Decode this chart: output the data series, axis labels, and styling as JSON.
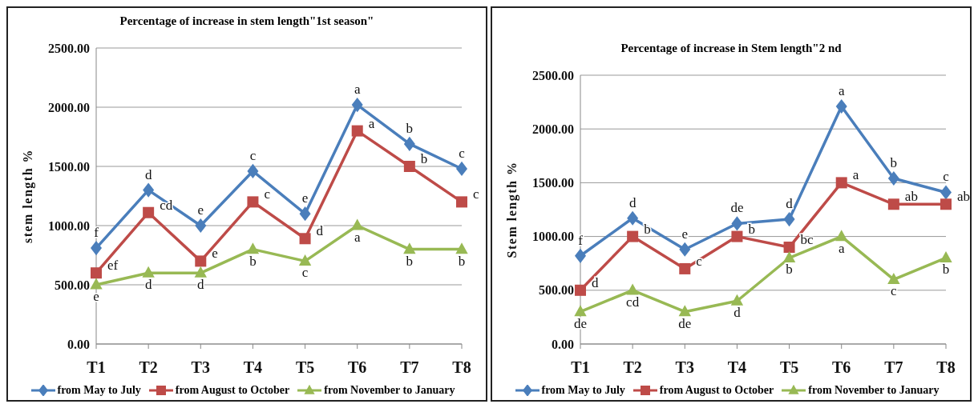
{
  "chart_data": [
    {
      "type": "line",
      "title": "Percentage of increase in stem length\"1st season\"",
      "ylabel": "stem length %",
      "categories": [
        "T1",
        "T2",
        "T3",
        "T4",
        "T5",
        "T6",
        "T7",
        "T8"
      ],
      "ylim": [
        0,
        2500
      ],
      "yticks": [
        {
          "value": 0,
          "label": "0.00"
        },
        {
          "value": 500,
          "label": "500.00"
        },
        {
          "value": 1000,
          "label": "1000.00"
        },
        {
          "value": 1500,
          "label": "1500.00"
        },
        {
          "value": 2000,
          "label": "2000.00"
        },
        {
          "value": 2500,
          "label": "2500.00"
        }
      ],
      "grid": "y",
      "legend": "bottom",
      "line_style": "solid",
      "series": [
        {
          "name": "from May to July",
          "color": "#4a7ebb",
          "marker": "diamond",
          "values": [
            810,
            1300,
            1000,
            1460,
            1100,
            2020,
            1690,
            1480
          ],
          "value_labels": [
            "f",
            "d",
            "e",
            "c",
            "e",
            "a",
            "b",
            "c"
          ]
        },
        {
          "name": "from August to October",
          "color": "#be4b48",
          "marker": "square",
          "values": [
            600,
            1110,
            700,
            1200,
            890,
            1800,
            1500,
            1200
          ],
          "value_labels": [
            "ef",
            "cd",
            "e",
            "c",
            "d",
            "a",
            "b",
            "c"
          ]
        },
        {
          "name": "from November to January",
          "color": "#98b954",
          "marker": "triangle",
          "values": [
            500,
            600,
            600,
            800,
            700,
            1000,
            800,
            800
          ],
          "value_labels": [
            "e",
            "d",
            "d",
            "b",
            "c",
            "a",
            "b",
            "b"
          ]
        }
      ]
    },
    {
      "type": "line",
      "title": "Percentage of increase in Stem length\"2 nd",
      "ylabel": "Stem length %",
      "categories": [
        "T1",
        "T2",
        "T3",
        "T4",
        "T5",
        "T6",
        "T7",
        "T8"
      ],
      "ylim": [
        0,
        2500
      ],
      "yticks": [
        {
          "value": 0,
          "label": "0.00"
        },
        {
          "value": 500,
          "label": "500.00"
        },
        {
          "value": 1000,
          "label": "1000.00"
        },
        {
          "value": 1500,
          "label": "1500.00"
        },
        {
          "value": 2000,
          "label": "2000.00"
        },
        {
          "value": 2500,
          "label": "2500.00"
        }
      ],
      "grid": "y",
      "legend": "bottom",
      "line_style": "solid",
      "series": [
        {
          "name": "from May to July",
          "color": "#4a7ebb",
          "marker": "diamond",
          "values": [
            820,
            1170,
            880,
            1120,
            1160,
            2210,
            1540,
            1410
          ],
          "value_labels": [
            "f",
            "d",
            "e",
            "de",
            "d",
            "a",
            "b",
            "c"
          ]
        },
        {
          "name": "from August to October",
          "color": "#be4b48",
          "marker": "square",
          "values": [
            500,
            1000,
            700,
            1000,
            900,
            1500,
            1300,
            1300
          ],
          "value_labels": [
            "d",
            "b",
            "c",
            "b",
            "bc",
            "a",
            "ab",
            "ab"
          ]
        },
        {
          "name": "from November to January",
          "color": "#98b954",
          "marker": "triangle",
          "values": [
            300,
            500,
            300,
            400,
            800,
            1000,
            600,
            800
          ],
          "value_labels": [
            "de",
            "cd",
            "de",
            "d",
            "b",
            "a",
            "c",
            "b"
          ]
        }
      ]
    }
  ]
}
